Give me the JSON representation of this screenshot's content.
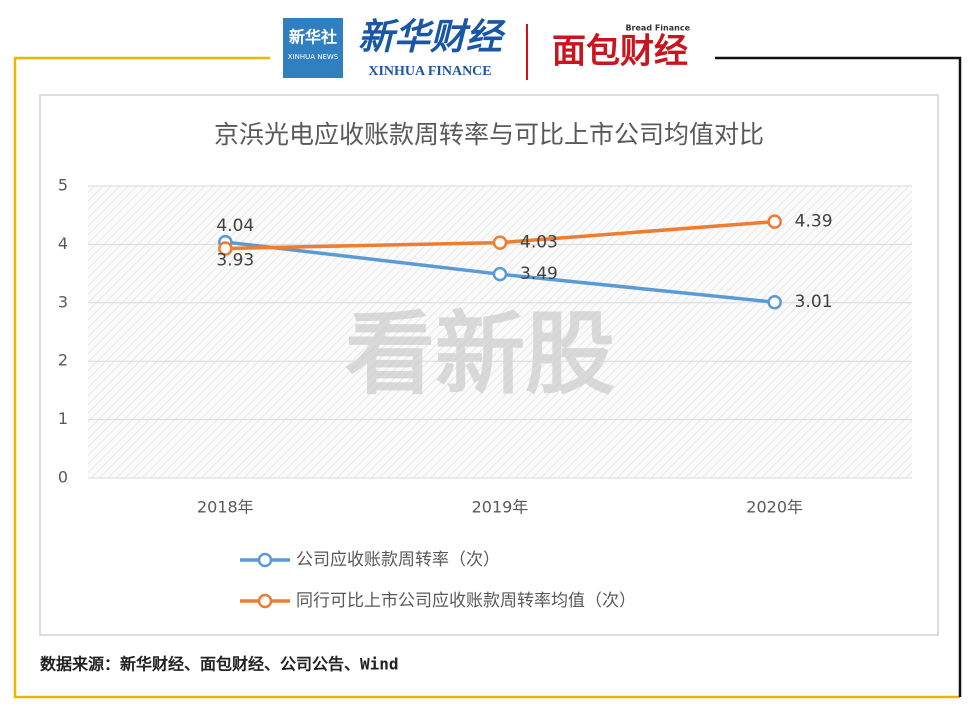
{
  "header": {
    "logo_cn": "新华社",
    "logo_en": "XINHUA NEWS",
    "brand_cn": "新华财经",
    "brand_en": "XINHUA FINANCE",
    "partner_en": "Bread Finance",
    "partner_cn": "面包财经"
  },
  "chart_data": {
    "type": "line",
    "title": "京浜光电应收账款周转率与可比上市公司均值对比",
    "categories": [
      "2018年",
      "2019年",
      "2020年"
    ],
    "series": [
      {
        "name": "公司应收账款周转率（次）",
        "color": "#5b9bd5",
        "values": [
          4.04,
          3.49,
          3.01
        ]
      },
      {
        "name": "同行可比上市公司应收账款周转率均值（次）",
        "color": "#ed7d31",
        "values": [
          3.93,
          4.03,
          4.39
        ]
      }
    ],
    "ylim": [
      0,
      5
    ],
    "yticks": [
      0,
      1,
      2,
      3,
      4,
      5
    ],
    "grid": true,
    "legend": "bottom",
    "watermark": "看新股"
  },
  "source": "数据来源：新华财经、面包财经、公司公告、Wind"
}
